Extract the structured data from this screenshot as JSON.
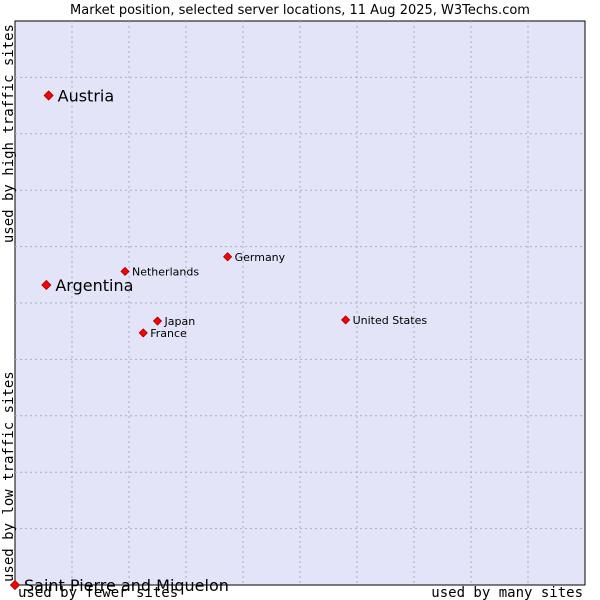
{
  "chart_data": {
    "type": "scatter",
    "title": "Market position, selected server locations, 11 Aug 2025, W3Techs.com",
    "xlabel_left": "used by fewer sites",
    "xlabel_right": "used by many sites",
    "ylabel_bottom": "used by low traffic sites",
    "ylabel_top": "used by high traffic sites",
    "xlim": [
      0,
      100
    ],
    "ylim": [
      0,
      100
    ],
    "grid": true,
    "colors": {
      "plot_bg": "#e4e4f8",
      "marker": "#ff0000",
      "marker_edge": "#990000"
    },
    "points": [
      {
        "label": "Austria",
        "x": 5.9,
        "y": 86.8,
        "size": "large",
        "label_side": "right"
      },
      {
        "label": "Argentina",
        "x": 5.5,
        "y": 53.2,
        "size": "large",
        "label_side": "right"
      },
      {
        "label": "Saint Pierre and Miquelon",
        "x": 0.0,
        "y": 0.0,
        "size": "large",
        "label_side": "right"
      },
      {
        "label": "Netherlands",
        "x": 19.3,
        "y": 55.6,
        "size": "small",
        "label_side": "right"
      },
      {
        "label": "Germany",
        "x": 37.3,
        "y": 58.2,
        "size": "small",
        "label_side": "right"
      },
      {
        "label": "United States",
        "x": 58.0,
        "y": 47.0,
        "size": "small",
        "label_side": "right"
      },
      {
        "label": "Japan",
        "x": 25.0,
        "y": 46.8,
        "size": "small",
        "label_side": "right"
      },
      {
        "label": "France",
        "x": 22.5,
        "y": 44.7,
        "size": "small",
        "label_side": "right"
      }
    ]
  }
}
